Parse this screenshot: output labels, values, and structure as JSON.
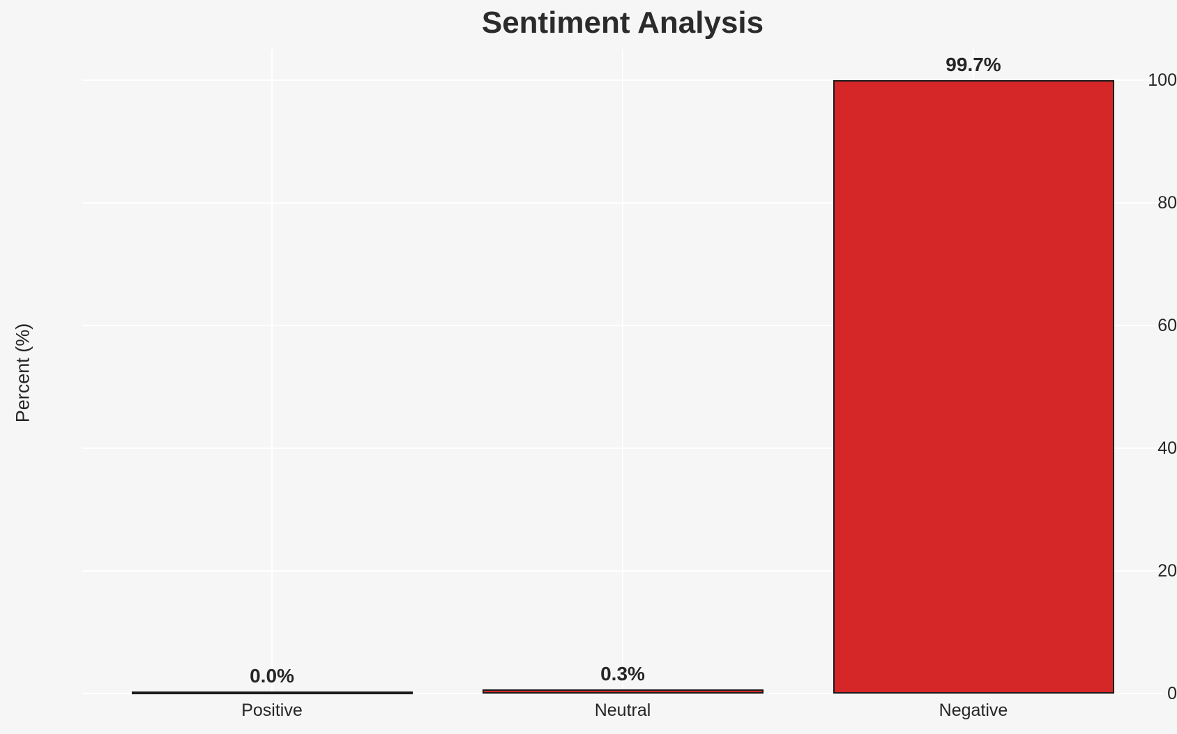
{
  "chart_data": {
    "type": "bar",
    "title": "Sentiment Analysis",
    "xlabel": "",
    "ylabel": "Percent (%)",
    "categories": [
      "Positive",
      "Neutral",
      "Negative"
    ],
    "values": [
      0.0,
      0.3,
      99.7
    ],
    "value_labels": [
      "0.0%",
      "0.3%",
      "99.7%"
    ],
    "yticks": [
      0,
      20,
      40,
      60,
      80,
      100
    ],
    "ylim": [
      0,
      105
    ],
    "grid": "both-axes, white gridlines on light gray background",
    "legend": "none",
    "colors": {
      "bar_fill": "#d62728",
      "bar_edge": "#1a1a1a",
      "background": "#f6f6f7",
      "gridline": "#ffffff",
      "text": "#262626"
    }
  }
}
